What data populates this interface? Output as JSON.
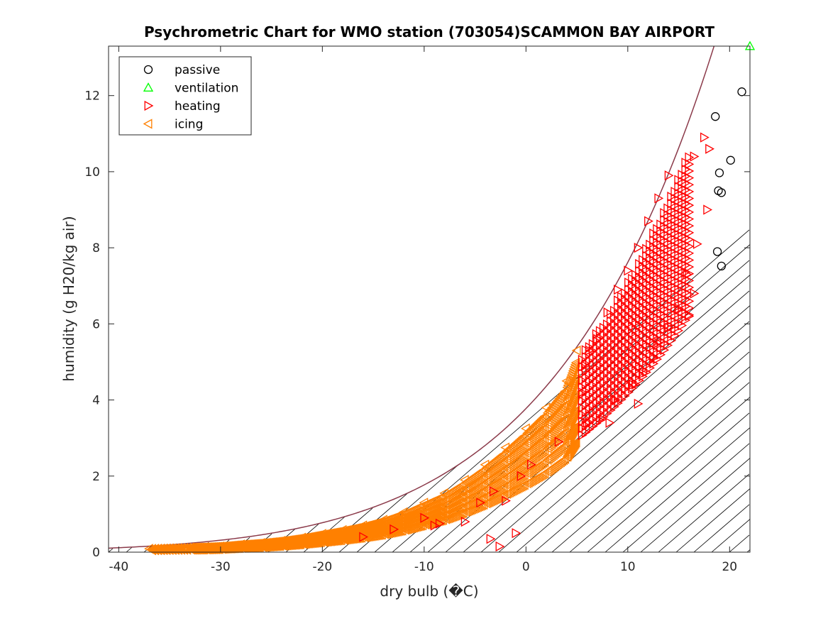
{
  "chart_data": {
    "type": "scatter",
    "title": "Psychrometric Chart for WMO station (703054)SCAMMON BAY AIRPORT",
    "xlabel": "dry bulb (�C)",
    "ylabel": "humidity (g H20/kg air)",
    "xlim": [
      -41,
      22
    ],
    "ylim": [
      0,
      13.3
    ],
    "xticks": [
      -40,
      -30,
      -20,
      -10,
      0,
      10,
      20
    ],
    "yticks": [
      0,
      2,
      4,
      6,
      8,
      10,
      12
    ],
    "legend_position": "top-left",
    "saturation_curve": true,
    "hatched_region": "comfort/heating zone below saturation curve",
    "series": [
      {
        "name": "passive",
        "marker": "circle",
        "color": "#000000",
        "points": [
          [
            21.2,
            12.1
          ],
          [
            18.6,
            11.45
          ],
          [
            20.1,
            10.3
          ],
          [
            19.0,
            9.97
          ],
          [
            18.9,
            9.5
          ],
          [
            19.2,
            9.45
          ],
          [
            18.8,
            7.9
          ],
          [
            19.2,
            7.52
          ]
        ]
      },
      {
        "name": "ventilation",
        "marker": "triangle-up",
        "color": "#00ff00",
        "points": [
          [
            22.0,
            13.3
          ]
        ]
      },
      {
        "name": "heating",
        "marker": "triangle-right",
        "color": "#ff0000",
        "points": [
          [
            5.5,
            4.2
          ],
          [
            5.8,
            4.9
          ],
          [
            6.2,
            5.3
          ],
          [
            7.0,
            5.6
          ],
          [
            8.0,
            6.3
          ],
          [
            9.0,
            6.9
          ],
          [
            10.0,
            7.4
          ],
          [
            11.0,
            8.0
          ],
          [
            12.0,
            8.7
          ],
          [
            13.0,
            9.3
          ],
          [
            14.0,
            9.9
          ],
          [
            16.5,
            10.4
          ],
          [
            17.5,
            10.9
          ],
          [
            18.0,
            10.6
          ],
          [
            17.8,
            9.0
          ],
          [
            16.8,
            8.1
          ],
          [
            15.8,
            7.3
          ],
          [
            16.5,
            6.8
          ],
          [
            15.0,
            6.4
          ],
          [
            16.0,
            6.2
          ],
          [
            14.0,
            5.9
          ],
          [
            13.0,
            5.5
          ],
          [
            12.5,
            5.1
          ],
          [
            11.5,
            4.7
          ],
          [
            10.5,
            4.4
          ],
          [
            8.8,
            4.0
          ],
          [
            7.5,
            3.5
          ],
          [
            6.0,
            3.4
          ],
          [
            11.0,
            3.9
          ],
          [
            8.2,
            3.4
          ],
          [
            3.2,
            2.9
          ],
          [
            0.5,
            2.3
          ],
          [
            -0.5,
            2.0
          ],
          [
            -3.2,
            1.6
          ],
          [
            -4.5,
            1.3
          ],
          [
            -2.0,
            1.35
          ],
          [
            -1.0,
            0.5
          ],
          [
            -3.5,
            0.35
          ],
          [
            -2.6,
            0.15
          ],
          [
            -6.0,
            0.8
          ],
          [
            -8.5,
            0.75
          ],
          [
            -13.0,
            0.6
          ],
          [
            -16.0,
            0.4
          ],
          [
            -9.0,
            0.7
          ],
          [
            -10.0,
            0.9
          ]
        ]
      },
      {
        "name": "icing",
        "marker": "triangle-left",
        "color": "#ff8000",
        "points": [
          [
            -37.0,
            0.09
          ],
          [
            -33.0,
            0.12
          ],
          [
            -31.5,
            0.13
          ],
          [
            -30.0,
            0.15
          ],
          [
            -28.0,
            0.2
          ],
          [
            -26.0,
            0.24
          ],
          [
            -24.0,
            0.3
          ],
          [
            -22.0,
            0.38
          ],
          [
            -20.0,
            0.48
          ],
          [
            -18.0,
            0.58
          ],
          [
            -16.0,
            0.7
          ],
          [
            -14.0,
            0.85
          ],
          [
            -12.0,
            1.05
          ],
          [
            -10.0,
            1.3
          ],
          [
            -8.0,
            1.55
          ],
          [
            -6.0,
            1.9
          ],
          [
            -4.0,
            2.3
          ],
          [
            -2.0,
            2.75
          ],
          [
            0.0,
            3.25
          ],
          [
            2.0,
            3.8
          ],
          [
            4.0,
            4.5
          ],
          [
            5.0,
            5.3
          ]
        ]
      }
    ]
  }
}
